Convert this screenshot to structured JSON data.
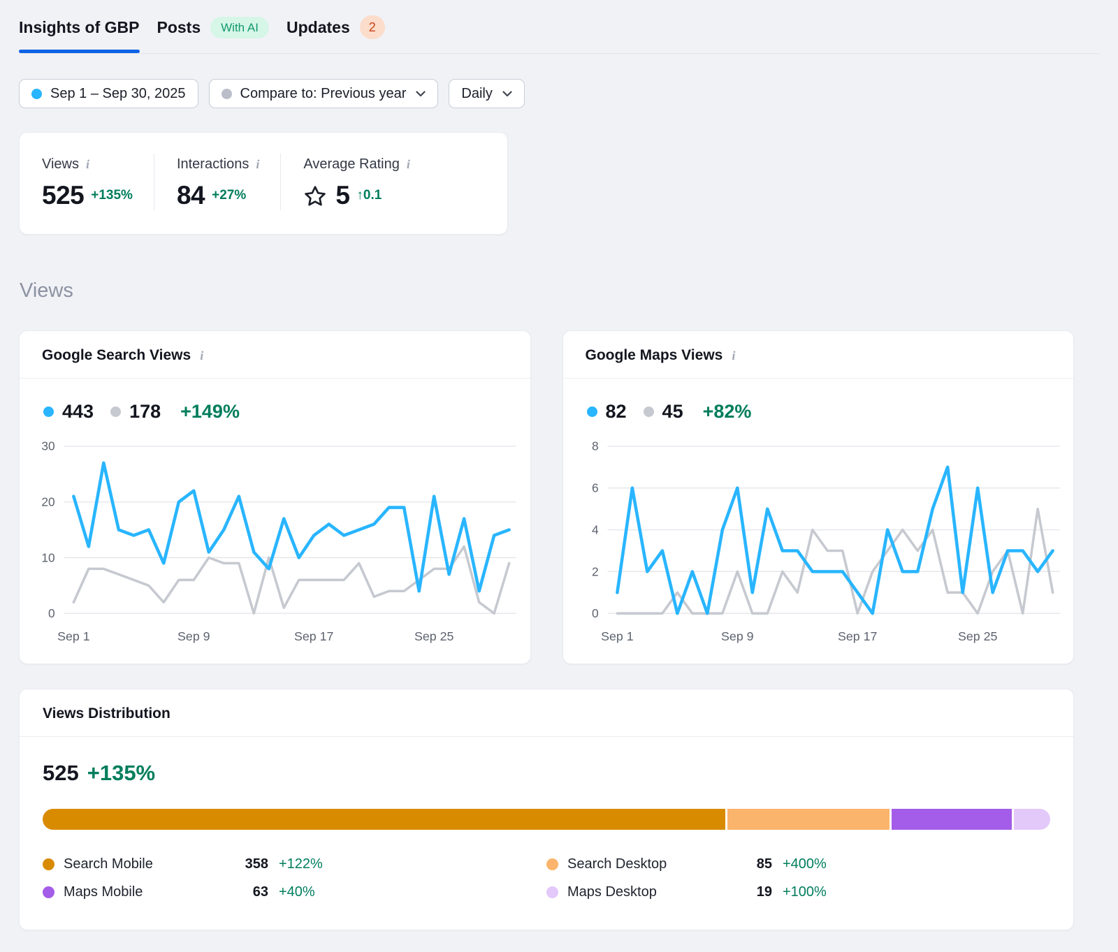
{
  "theme": {
    "accent": "#0d63e5",
    "positive": "#007d5c",
    "chart_blue": "#29b5ff",
    "chart_gray": "#c6c9d0",
    "dot_gray": "#b9bec9"
  },
  "tabs": [
    {
      "label": "Insights of GBP",
      "active": true
    },
    {
      "label": "Posts",
      "badge": "With AI"
    },
    {
      "label": "Updates",
      "badge": "2"
    }
  ],
  "filters": {
    "date_range": "Sep 1 – Sep 30, 2025",
    "compare": "Compare to: Previous year",
    "granularity": "Daily"
  },
  "summary": {
    "items": [
      {
        "label": "Views",
        "value": "525",
        "change": "+135%"
      },
      {
        "label": "Interactions",
        "value": "84",
        "change": "+27%"
      },
      {
        "label": "Average Rating",
        "value": "5",
        "change": "↑0.1"
      }
    ]
  },
  "section": {
    "title": "Views"
  },
  "chart_data": [
    {
      "type": "line",
      "title": "Google Search Views",
      "change": "+149%",
      "categories": [
        "Sep 1",
        "Sep 2",
        "Sep 3",
        "Sep 4",
        "Sep 5",
        "Sep 6",
        "Sep 7",
        "Sep 8",
        "Sep 9",
        "Sep 10",
        "Sep 11",
        "Sep 12",
        "Sep 13",
        "Sep 14",
        "Sep 15",
        "Sep 16",
        "Sep 17",
        "Sep 18",
        "Sep 19",
        "Sep 20",
        "Sep 21",
        "Sep 22",
        "Sep 23",
        "Sep 24",
        "Sep 25",
        "Sep 26",
        "Sep 27",
        "Sep 28",
        "Sep 29",
        "Sep 30"
      ],
      "xtick_indices": [
        0,
        8,
        16,
        24
      ],
      "xtick_labels": [
        "Sep 1",
        "Sep 9",
        "Sep 17",
        "Sep 25"
      ],
      "ylim": [
        0,
        30
      ],
      "yticks": [
        30,
        20,
        10,
        0
      ],
      "grid": true,
      "legend_position": "top-left",
      "series": [
        {
          "name": "current",
          "total": "443",
          "color": "#29b5ff",
          "values": [
            21,
            12,
            27,
            15,
            14,
            15,
            9,
            20,
            22,
            11,
            15,
            21,
            11,
            8,
            17,
            10,
            14,
            16,
            14,
            15,
            16,
            19,
            19,
            4,
            21,
            7,
            17,
            4,
            14,
            15
          ]
        },
        {
          "name": "previous",
          "total": "178",
          "color": "#c6c9d0",
          "values": [
            2,
            8,
            8,
            7,
            6,
            5,
            2,
            6,
            6,
            10,
            9,
            9,
            0,
            10,
            1,
            6,
            6,
            6,
            6,
            9,
            3,
            4,
            4,
            6,
            8,
            8,
            12,
            2,
            0,
            9
          ]
        }
      ]
    },
    {
      "type": "line",
      "title": "Google Maps Views",
      "change": "+82%",
      "categories": [
        "Sep 1",
        "Sep 2",
        "Sep 3",
        "Sep 4",
        "Sep 5",
        "Sep 6",
        "Sep 7",
        "Sep 8",
        "Sep 9",
        "Sep 10",
        "Sep 11",
        "Sep 12",
        "Sep 13",
        "Sep 14",
        "Sep 15",
        "Sep 16",
        "Sep 17",
        "Sep 18",
        "Sep 19",
        "Sep 20",
        "Sep 21",
        "Sep 22",
        "Sep 23",
        "Sep 24",
        "Sep 25",
        "Sep 26",
        "Sep 27",
        "Sep 28",
        "Sep 29",
        "Sep 30"
      ],
      "xtick_indices": [
        0,
        8,
        16,
        24
      ],
      "xtick_labels": [
        "Sep 1",
        "Sep 9",
        "Sep 17",
        "Sep 25"
      ],
      "ylim": [
        0,
        8
      ],
      "yticks": [
        8,
        6,
        4,
        2,
        0
      ],
      "grid": true,
      "legend_position": "top-left",
      "series": [
        {
          "name": "current",
          "total": "82",
          "color": "#29b5ff",
          "values": [
            1,
            6,
            2,
            3,
            0,
            2,
            0,
            4,
            6,
            1,
            5,
            3,
            3,
            2,
            2,
            2,
            1,
            0,
            4,
            2,
            2,
            5,
            7,
            1,
            6,
            1,
            3,
            3,
            2,
            3
          ]
        },
        {
          "name": "previous",
          "total": "45",
          "color": "#c6c9d0",
          "values": [
            0,
            0,
            0,
            0,
            1,
            0,
            0,
            0,
            2,
            0,
            0,
            2,
            1,
            4,
            3,
            3,
            0,
            2,
            3,
            4,
            3,
            4,
            1,
            1,
            0,
            2,
            3,
            0,
            5,
            1
          ]
        }
      ]
    }
  ],
  "distribution": {
    "title": "Views Distribution",
    "total": "525",
    "change": "+135%",
    "segments": [
      {
        "label": "Search Mobile",
        "value": 358,
        "change": "+122%",
        "color": "#d98b00"
      },
      {
        "label": "Search Desktop",
        "value": 85,
        "change": "+400%",
        "color": "#fbb46c"
      },
      {
        "label": "Maps Mobile",
        "value": 63,
        "change": "+40%",
        "color": "#a35de8"
      },
      {
        "label": "Maps Desktop",
        "value": 19,
        "change": "+100%",
        "color": "#e3c8fa"
      }
    ]
  }
}
